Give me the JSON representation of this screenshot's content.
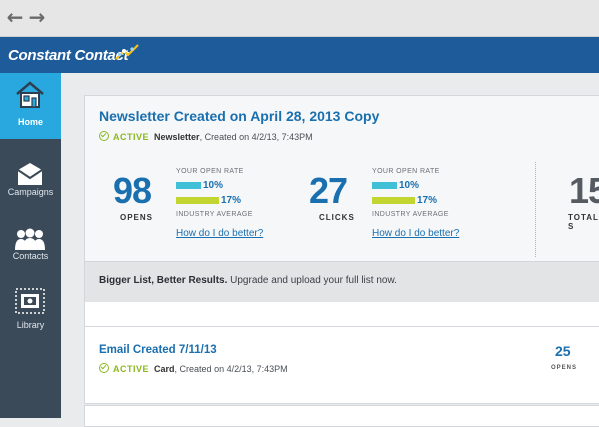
{
  "browser": {
    "back_icon": "arrow-left-icon",
    "forward_icon": "arrow-right-icon"
  },
  "brand": {
    "name": "Constant Contact",
    "color": "#1e5b9b",
    "accent": "#29a8df"
  },
  "sidebar": {
    "items": [
      {
        "label": "Home",
        "icon": "house-icon",
        "active": true
      },
      {
        "label": "Campaigns",
        "icon": "envelope-icon",
        "active": false
      },
      {
        "label": "Contacts",
        "icon": "people-icon",
        "active": false
      },
      {
        "label": "Library",
        "icon": "image-icon",
        "active": false
      }
    ]
  },
  "campaign1": {
    "title": "Newsletter Created on April 28, 2013 Copy",
    "status": "ACTIVE",
    "type": "Newsletter",
    "created": ", Created on 4/2/13, 7:43PM",
    "opens": {
      "value": "98",
      "label": "OPENS"
    },
    "open_rate": {
      "your_label": "YOUR OPEN RATE",
      "your_pct": "10%",
      "your_fraction": 0.1,
      "industry_pct": "17%",
      "industry_fraction": 0.17,
      "industry_label": "INDUSTRY AVERAGE",
      "help": "How do I do better?"
    },
    "clicks": {
      "value": "27",
      "label": "CLICKS"
    },
    "click_rate": {
      "your_label": "YOUR OPEN RATE",
      "your_pct": "10%",
      "your_fraction": 0.1,
      "industry_pct": "17%",
      "industry_fraction": 0.17,
      "industry_label": "INDUSTRY AVERAGE",
      "help": "How do I do better?"
    },
    "total": {
      "value": "15",
      "label": "TOTAL S"
    },
    "footer": {
      "bold": "Bigger List, Better Results.",
      "text": " Upgrade and upload your full list now."
    }
  },
  "campaign2": {
    "title": "Email Created 7/11/13",
    "status": "ACTIVE",
    "type": "Card",
    "created": ", Created on 4/2/13, 7:43PM",
    "opens": {
      "value": "25",
      "label": "OPENS"
    }
  },
  "colors": {
    "your_bar": "#3fc0d6",
    "industry_bar": "#c3d530",
    "link": "#1a6fae",
    "active_green": "#8bb81d"
  }
}
